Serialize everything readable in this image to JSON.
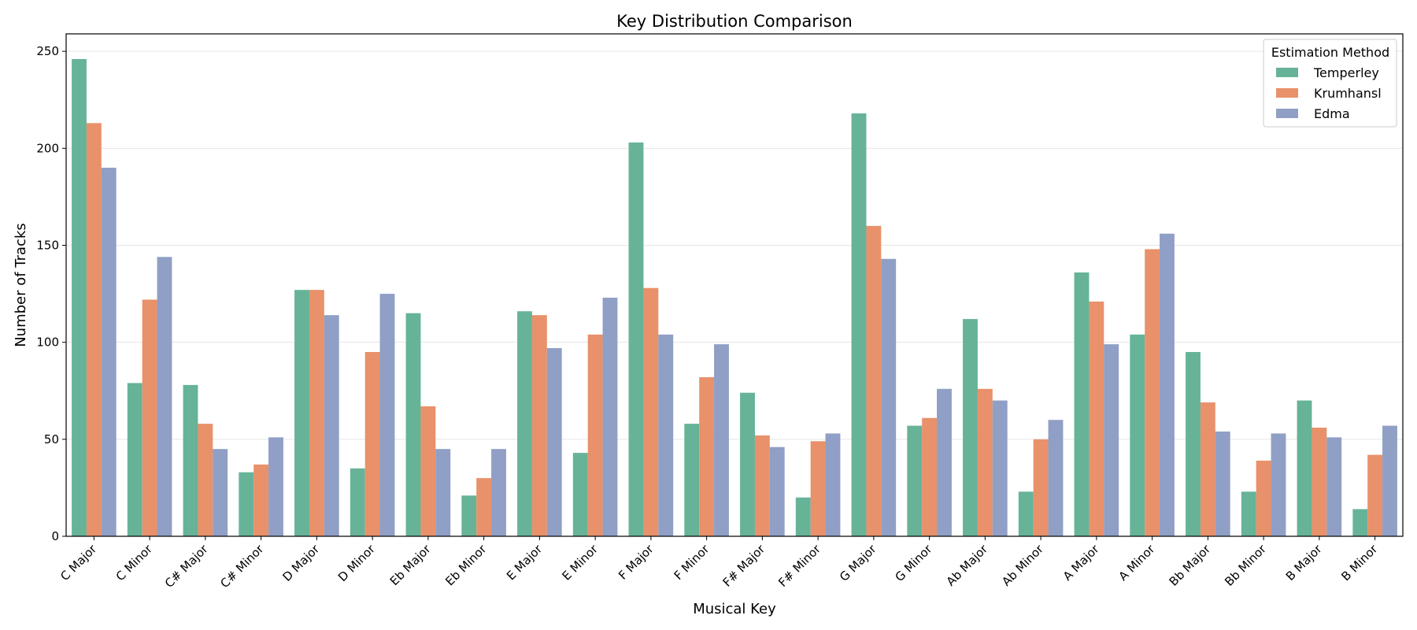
{
  "chart_data": {
    "type": "bar",
    "title": "Key Distribution Comparison",
    "xlabel": "Musical Key",
    "ylabel": "Number of Tracks",
    "ylim": [
      0,
      259
    ],
    "yticks": [
      0,
      50,
      100,
      150,
      200,
      250
    ],
    "grid": "horizontal",
    "legend_placement": "top-right",
    "legend_title": "Estimation Method",
    "categories": [
      "C Major",
      "C Minor",
      "C# Major",
      "C# Minor",
      "D Major",
      "D Minor",
      "Eb Major",
      "Eb Minor",
      "E Major",
      "E Minor",
      "F Major",
      "F Minor",
      "F# Major",
      "F# Minor",
      "G Major",
      "G Minor",
      "Ab Major",
      "Ab Minor",
      "A Major",
      "A Minor",
      "Bb Major",
      "Bb Minor",
      "B Major",
      "B Minor"
    ],
    "series": [
      {
        "name": "Temperley",
        "color": "#66b398",
        "values": [
          246,
          79,
          78,
          33,
          127,
          35,
          115,
          21,
          116,
          43,
          203,
          58,
          74,
          20,
          218,
          57,
          112,
          23,
          136,
          104,
          95,
          23,
          70,
          14
        ]
      },
      {
        "name": "Krumhansl",
        "color": "#e8916a",
        "values": [
          213,
          122,
          58,
          37,
          127,
          95,
          67,
          30,
          114,
          104,
          128,
          82,
          52,
          49,
          160,
          61,
          76,
          50,
          121,
          148,
          69,
          39,
          56,
          42
        ]
      },
      {
        "name": "Edma",
        "color": "#909fc5",
        "values": [
          190,
          144,
          45,
          51,
          114,
          125,
          45,
          45,
          97,
          123,
          104,
          99,
          46,
          53,
          143,
          76,
          70,
          60,
          99,
          156,
          54,
          53,
          51,
          57
        ]
      }
    ]
  }
}
